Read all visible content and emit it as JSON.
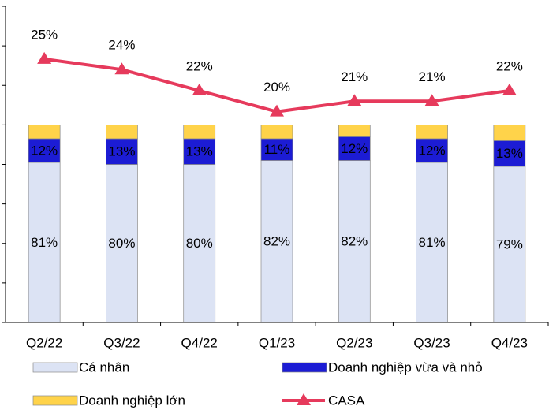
{
  "chart_data": {
    "type": "combo",
    "stacked": true,
    "categories": [
      "Q2/22",
      "Q3/22",
      "Q4/22",
      "Q1/23",
      "Q2/23",
      "Q3/23",
      "Q4/23"
    ],
    "series": [
      {
        "name": "Cá nhân",
        "type": "bar",
        "color": "#dce3f4",
        "values": [
          81,
          80,
          80,
          82,
          82,
          81,
          79
        ],
        "value_labels": [
          "81%",
          "80%",
          "80%",
          "82%",
          "82%",
          "81%",
          "79%"
        ]
      },
      {
        "name": "Doanh nghiệp vừa và nhỏ",
        "type": "bar",
        "color": "#1c1cd4",
        "values": [
          12,
          13,
          13,
          11,
          12,
          12,
          13
        ],
        "value_labels": [
          "12%",
          "13%",
          "13%",
          "11%",
          "12%",
          "12%",
          "13%"
        ]
      },
      {
        "name": "Doanh nghiệp lớn",
        "type": "bar",
        "color": "#ffd34a",
        "values": [
          7,
          7,
          7,
          7,
          6,
          7,
          8
        ]
      },
      {
        "name": "CASA",
        "type": "line",
        "axis": "y2",
        "color": "#e63a5c",
        "values": [
          25,
          24,
          22,
          20,
          21,
          21,
          22
        ],
        "value_labels": [
          "25%",
          "24%",
          "22%",
          "20%",
          "21%",
          "21%",
          "22%"
        ]
      }
    ],
    "ylim": [
      0,
      160
    ],
    "yticks": [
      0,
      20,
      40,
      60,
      80,
      100,
      120,
      140,
      160
    ],
    "y2lim": [
      0,
      30
    ],
    "legend": "bottom"
  }
}
